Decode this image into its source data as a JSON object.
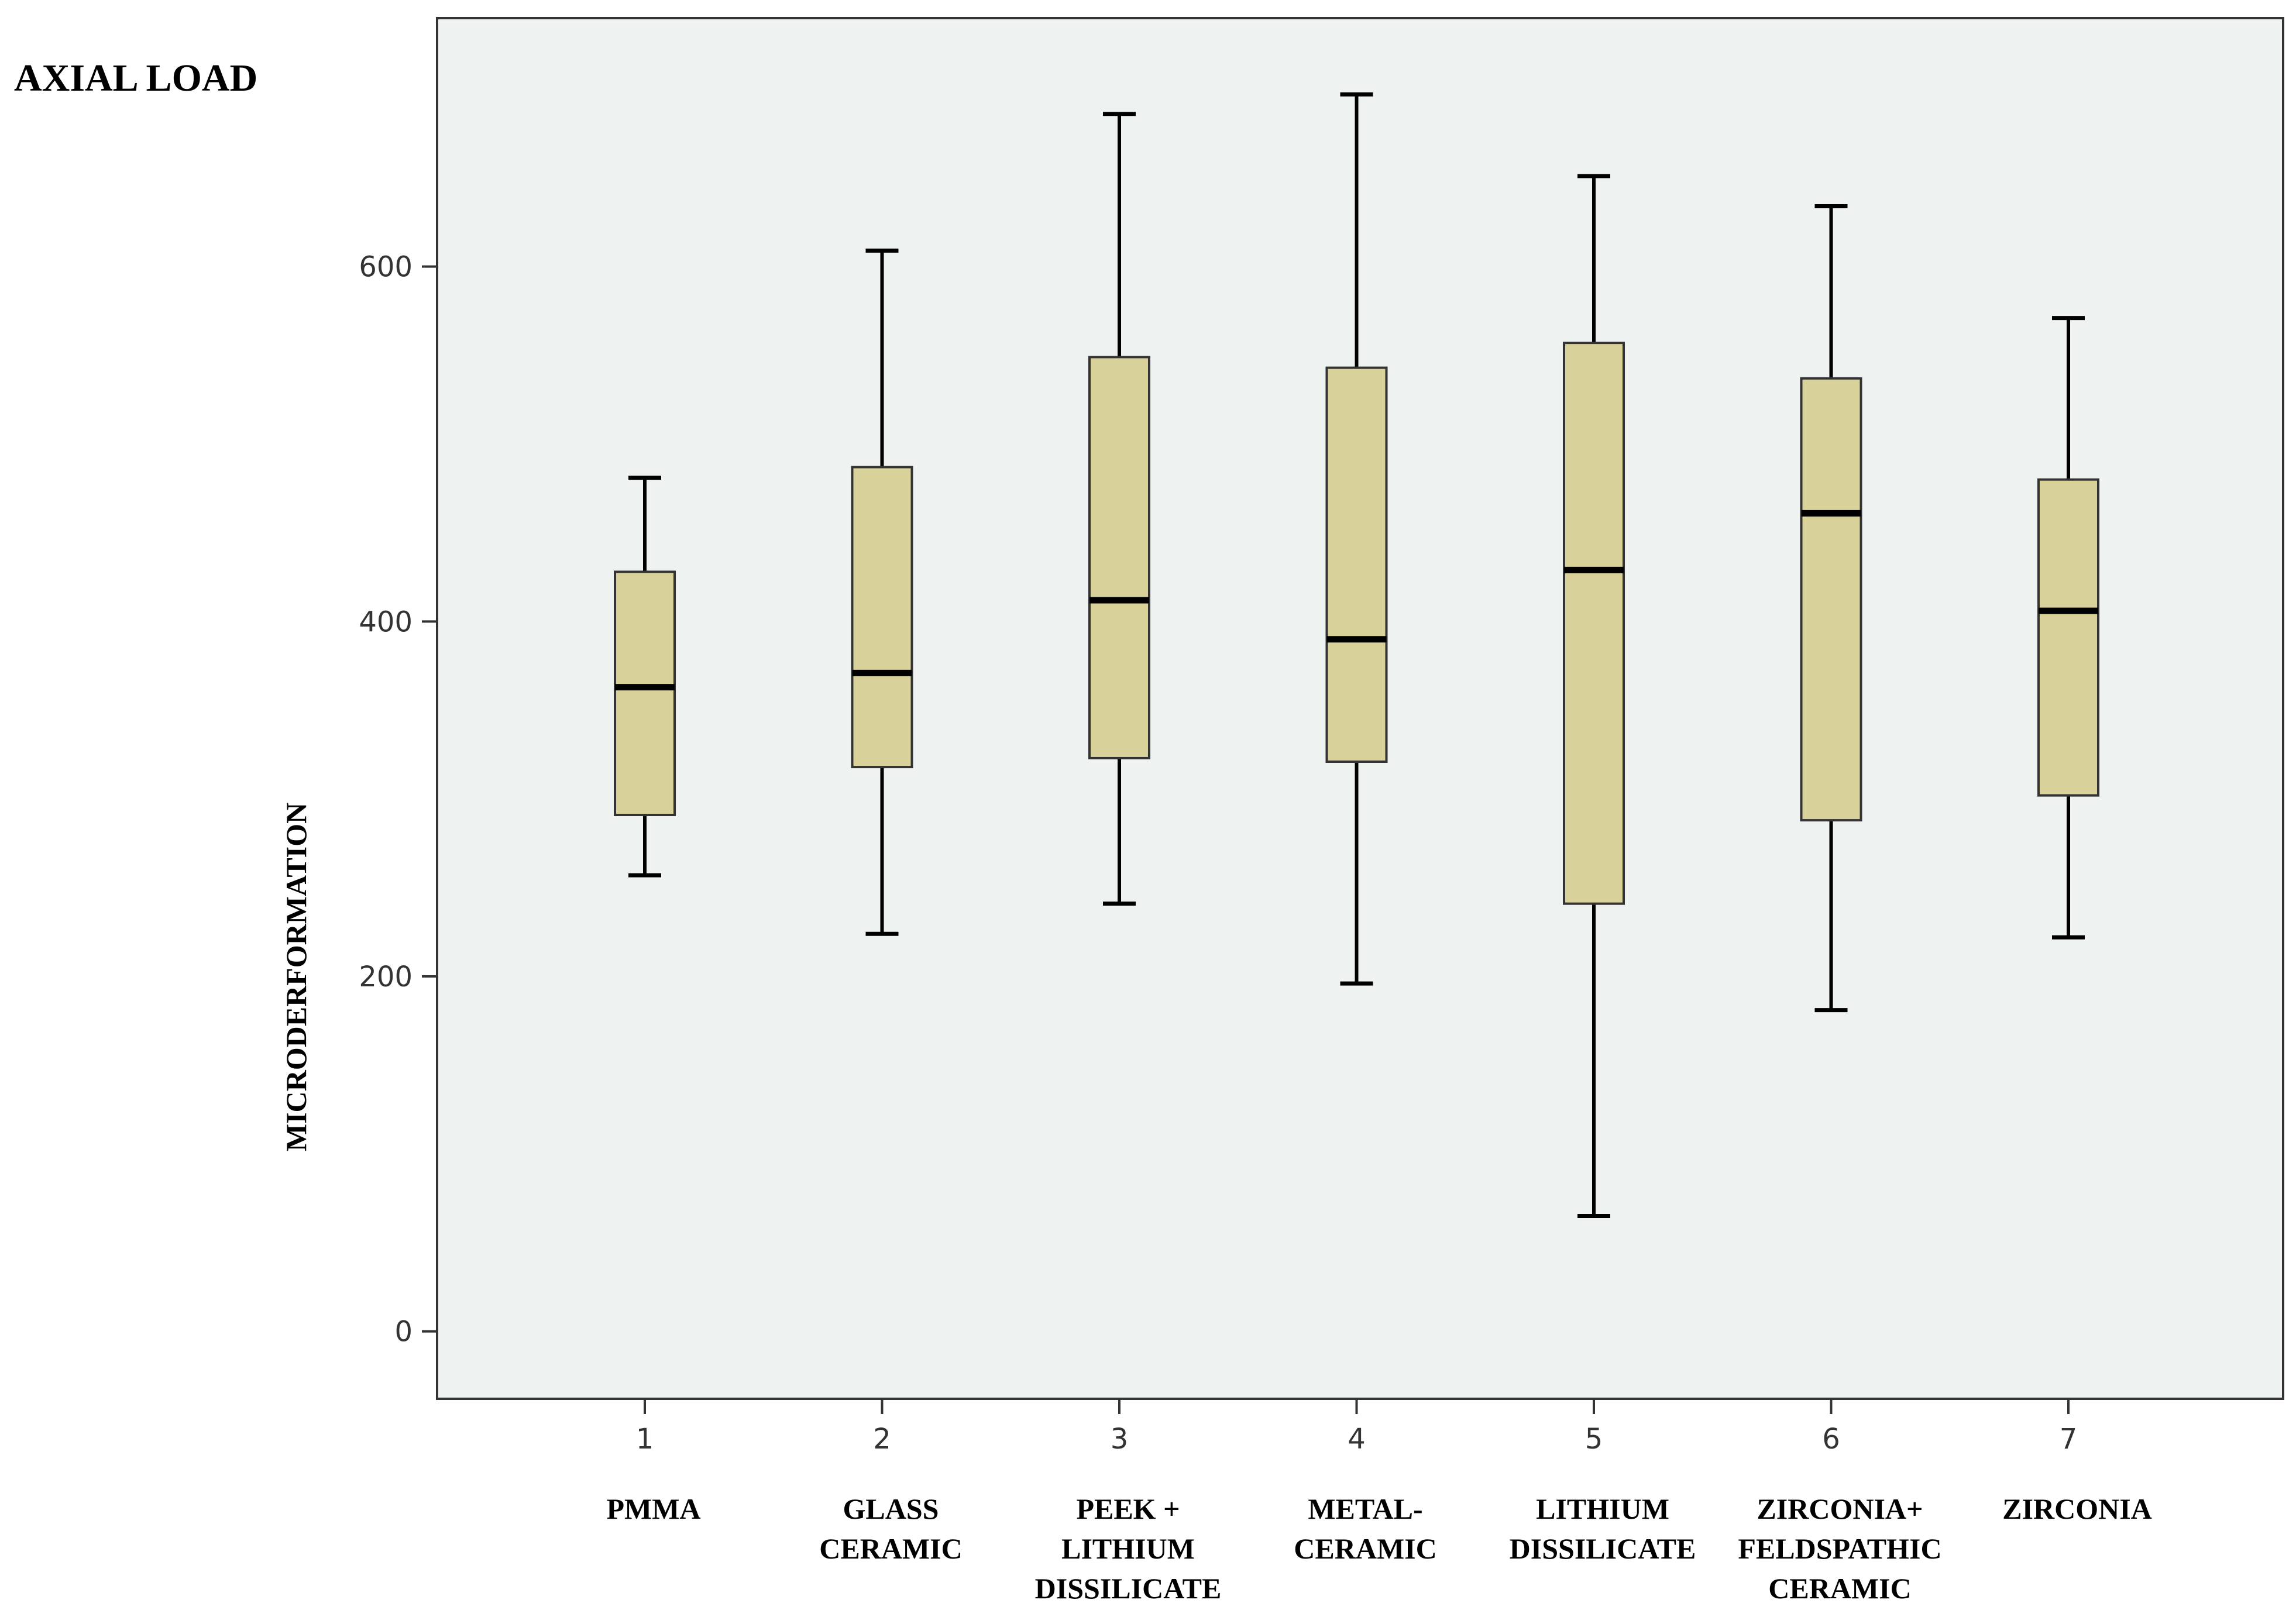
{
  "chart_data": {
    "type": "box",
    "title": "AXIAL LOAD",
    "xlabel": "",
    "ylabel": "MICRODERFORMATION",
    "ylim": [
      -38,
      740
    ],
    "yticks": [
      0,
      200,
      400,
      600
    ],
    "grid": false,
    "colors": {
      "plot_background": "#eef2f1",
      "box_fill": "#d8d19a",
      "box_stroke": "#333333",
      "median": "#000000",
      "whisker": "#000000"
    },
    "categories": [
      {
        "code": "1",
        "name": [
          "PMMA"
        ],
        "whisker_low": 257,
        "q1": 291,
        "median": 363,
        "q3": 428,
        "whisker_high": 481
      },
      {
        "code": "2",
        "name": [
          "GLASS",
          "CERAMIC"
        ],
        "whisker_low": 224,
        "q1": 318,
        "median": 371,
        "q3": 487,
        "whisker_high": 609
      },
      {
        "code": "3",
        "name": [
          "PEEK +",
          "LITHIUM",
          "DISSILICATE"
        ],
        "whisker_low": 241,
        "q1": 323,
        "median": 412,
        "q3": 549,
        "whisker_high": 686
      },
      {
        "code": "4",
        "name": [
          "METAL-",
          "CERAMIC"
        ],
        "whisker_low": 196,
        "q1": 321,
        "median": 390,
        "q3": 543,
        "whisker_high": 697
      },
      {
        "code": "5",
        "name": [
          "LITHIUM",
          "DISSILICATE"
        ],
        "whisker_low": 65,
        "q1": 241,
        "median": 429,
        "q3": 557,
        "whisker_high": 651
      },
      {
        "code": "6",
        "name": [
          "ZIRCONIA+",
          "FELDSPATHIC",
          "CERAMIC"
        ],
        "whisker_low": 181,
        "q1": 288,
        "median": 461,
        "q3": 537,
        "whisker_high": 634
      },
      {
        "code": "7",
        "name": [
          "ZIRCONIA"
        ],
        "whisker_low": 222,
        "q1": 302,
        "median": 406,
        "q3": 480,
        "whisker_high": 571
      }
    ]
  }
}
